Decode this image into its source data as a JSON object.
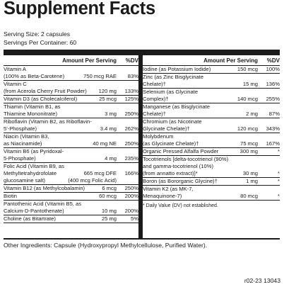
{
  "title": "Supplement Facts",
  "serving_size": "Serving Size: 2 capsules",
  "servings_per_container": "Servings Per Container: 60",
  "left": {
    "header_amount": "Amount Per Serving",
    "header_dv": "%DV",
    "rows": [
      {
        "lines": [
          {
            "label": "Vitamin A",
            "amount": "",
            "dv": ""
          },
          {
            "label": "(100% as Beta-Carotene)",
            "amount": "750 mcg RAE",
            "dv": "83%"
          }
        ]
      },
      {
        "lines": [
          {
            "label": "Vitamin C",
            "amount": "",
            "dv": ""
          },
          {
            "label": "(from Acerola Cherry Fruit Powder)",
            "amount": "120 mg",
            "dv": "133%"
          }
        ]
      },
      {
        "lines": [
          {
            "label": "Vitamin D3 (as Cholecalciferol)",
            "amount": "25 mcg",
            "dv": "125%"
          }
        ]
      },
      {
        "lines": [
          {
            "label": "Thiamin (Vitamin B1, as",
            "amount": "",
            "dv": ""
          },
          {
            "label": "Thiamine Mononitrate)",
            "amount": "3 mg",
            "dv": "250%"
          }
        ]
      },
      {
        "lines": [
          {
            "label": "Riboflavin (Vitamin B2, as Riboflavin-",
            "amount": "",
            "dv": ""
          },
          {
            "label": "5'-Phosphate)",
            "amount": "3.4 mg",
            "dv": "262%"
          }
        ]
      },
      {
        "lines": [
          {
            "label": "Niacin (Vitamin B3,",
            "amount": "",
            "dv": ""
          },
          {
            "label": "as Niacinamide)",
            "amount": "40 mg NE",
            "dv": "250%"
          }
        ]
      },
      {
        "lines": [
          {
            "label": "Vitamin B6 (as Pyridoxal-",
            "amount": "",
            "dv": ""
          },
          {
            "label": "5-Phosphate)",
            "amount": "4 mg",
            "dv": "235%"
          }
        ]
      },
      {
        "lines": [
          {
            "label": "Folic Acid (Vitamin B9, as",
            "amount": "",
            "dv": ""
          },
          {
            "label": "Methyltetrahydrofolate",
            "amount": "665 mcg DFE",
            "dv": "166%"
          },
          {
            "label": "glucosamine salt)",
            "amount": "(400 mcg Folic Acid)",
            "dv": ""
          }
        ]
      },
      {
        "lines": [
          {
            "label": "Vitamin B12 (as Methylcobalamin)",
            "amount": "6 mcg",
            "dv": "250%"
          }
        ]
      },
      {
        "lines": [
          {
            "label": "Biotin",
            "amount": "60 mcg",
            "dv": "200%"
          }
        ]
      },
      {
        "lines": [
          {
            "label": "Pantothenic Acid (Vitamin B5, as",
            "amount": "",
            "dv": ""
          },
          {
            "label": "Calcium-D-Pantothenate)",
            "amount": "10 mg",
            "dv": "200%"
          }
        ]
      },
      {
        "lines": [
          {
            "label": "Choline (as Bitartrate)",
            "amount": "25 mg",
            "dv": "5%"
          }
        ]
      }
    ]
  },
  "right": {
    "header_amount": "Amount Per Serving",
    "header_dv": "%DV",
    "rows": [
      {
        "lines": [
          {
            "label": "Iodine (as Potassium Iodide)",
            "amount": "150 mcg",
            "dv": "100%"
          }
        ]
      },
      {
        "lines": [
          {
            "label": "Zinc (as Zinc Bisglycinate",
            "amount": "",
            "dv": ""
          },
          {
            "label": "Chelate)†",
            "amount": "15 mg",
            "dv": "136%"
          }
        ]
      },
      {
        "lines": [
          {
            "label": "Selenium (as Glycinate",
            "amount": "",
            "dv": ""
          },
          {
            "label": "Complex)†",
            "amount": "140 mcg",
            "dv": "255%"
          }
        ]
      },
      {
        "lines": [
          {
            "label": "Manganese (as Bisglycinate",
            "amount": "",
            "dv": ""
          },
          {
            "label": "Chelate)†",
            "amount": "2 mg",
            "dv": "87%"
          }
        ]
      },
      {
        "lines": [
          {
            "label": "Chromium (as Nicotinate",
            "amount": "",
            "dv": ""
          },
          {
            "label": "Glycinate Chelate)†",
            "amount": "120 mcg",
            "dv": "343%"
          }
        ]
      },
      {
        "lines": [
          {
            "label": "Molybdenum",
            "amount": "",
            "dv": ""
          },
          {
            "label": "(as Glycinate Chelate)†",
            "amount": "75 mcg",
            "dv": "167%"
          }
        ]
      },
      {
        "lines": [
          {
            "label": "Organic Pressed Alfalfa Powder",
            "amount": "300 mg",
            "dv": "*"
          }
        ]
      },
      {
        "lines": [
          {
            "label": "Tocotrienols [delta-tocotrienol (90%)",
            "amount": "",
            "dv": ""
          },
          {
            "label": "and gamma-tocotrienol (10%)",
            "amount": "",
            "dv": ""
          },
          {
            "label": "(from annatto extract)]*",
            "amount": "30 mg",
            "dv": "*"
          }
        ]
      },
      {
        "lines": [
          {
            "label": "Boron (as Bororganic Glycine)†",
            "amount": "1 mg",
            "dv": "*"
          }
        ]
      },
      {
        "lines": [
          {
            "label": "Vitamin K2 (as MK-7,",
            "amount": "",
            "dv": ""
          },
          {
            "label": "Menaquinone-7)",
            "amount": "80 mcg",
            "dv": "*"
          }
        ]
      }
    ],
    "footnote": "* Daily Value (DV) not established."
  },
  "other_ingredients": "Other Ingredients: Capsule (Hydroxypropyl Methylcellulose, Purified Water).",
  "code": "r02-23 13043"
}
